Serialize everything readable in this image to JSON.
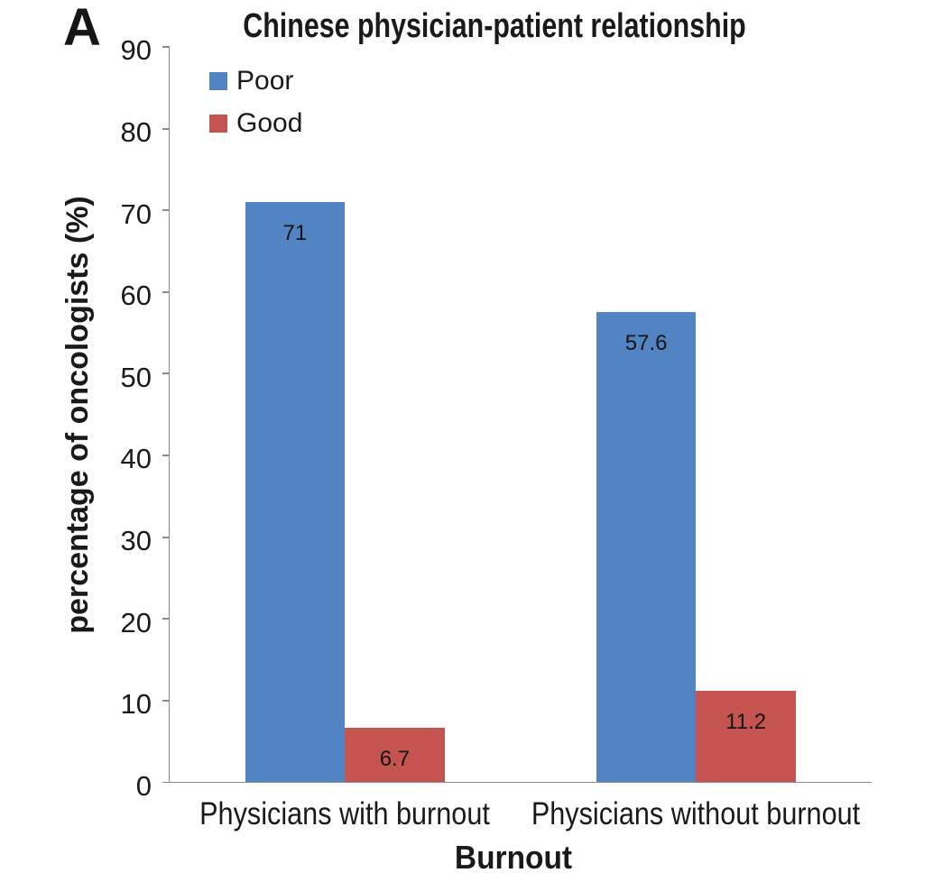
{
  "panel_label": "A",
  "chart_data": {
    "type": "bar",
    "title": "Chinese physician-patient relationship",
    "xlabel": "Burnout",
    "ylabel": "percentage of oncologists (%)",
    "categories": [
      "Physicians with burnout",
      "Physicians without burnout"
    ],
    "series": [
      {
        "name": "Poor",
        "color": "#5284C4",
        "values": [
          71,
          57.6
        ],
        "value_labels": [
          "71",
          "57.6"
        ]
      },
      {
        "name": "Good",
        "color": "#C55451",
        "values": [
          6.7,
          11.2
        ],
        "value_labels": [
          "6.7",
          "11.2"
        ]
      }
    ],
    "ylim": [
      0,
      90
    ],
    "ytick_step": 10,
    "yticks": [
      "0",
      "10",
      "20",
      "30",
      "40",
      "50",
      "60",
      "70",
      "80",
      "90"
    ],
    "grid": false,
    "legend_position": "top-left-inside",
    "value_label_position": "inside-end",
    "colors": {
      "axis": "#8a8a8a",
      "text": "#1a1a1a",
      "background": "#ffffff"
    }
  }
}
